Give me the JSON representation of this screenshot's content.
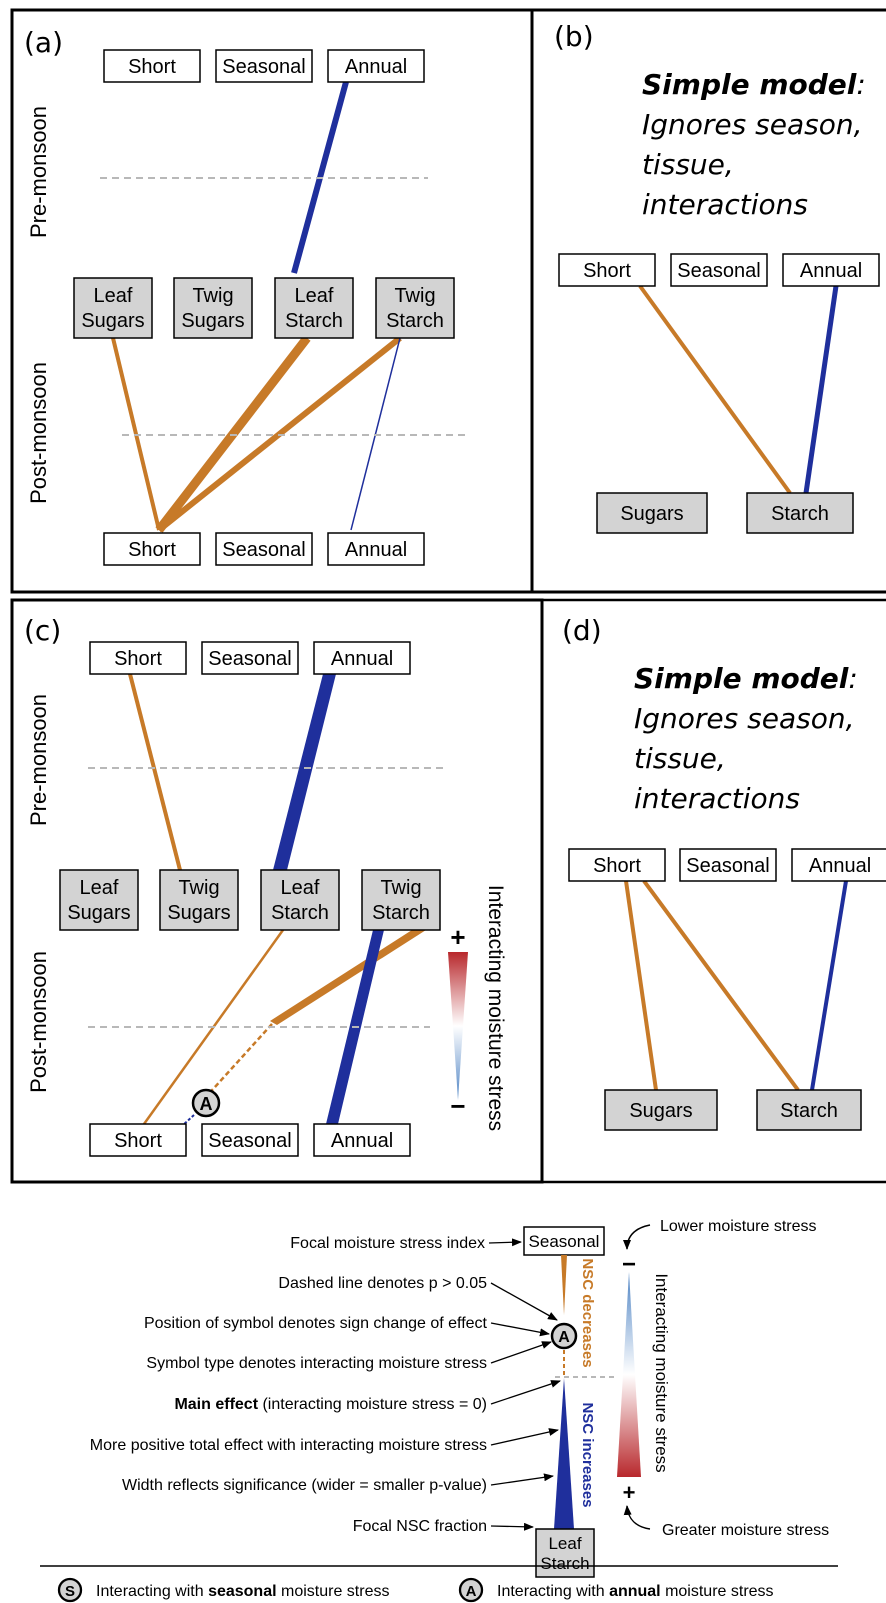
{
  "colors": {
    "orange": "#c77a28",
    "blue": "#1f2f9c",
    "box_gray": "#d3d3d3",
    "dash_gray": "#b8b8b8",
    "grad_red": "#b8282c",
    "grad_blue": "#4f84c4"
  },
  "panels": {
    "a": {
      "label": "(a)",
      "premonsoon": "Pre-monsoon",
      "postmonsoon": "Post-monsoon",
      "top": [
        "Short",
        "Seasonal",
        "Annual"
      ],
      "bottom": [
        "Short",
        "Seasonal",
        "Annual"
      ],
      "mid": [
        [
          "Leaf",
          "Sugars"
        ],
        [
          "Twig",
          "Sugars"
        ],
        [
          "Leaf",
          "Starch"
        ],
        [
          "Twig",
          "Starch"
        ]
      ]
    },
    "b": {
      "label": "(b)",
      "title_bold": "Simple model",
      "title_colon": ":",
      "lines": [
        "Ignores season,",
        "tissue,",
        "interactions"
      ],
      "top": [
        "Short",
        "Seasonal",
        "Annual"
      ],
      "bottom": [
        "Sugars",
        "Starch"
      ]
    },
    "c": {
      "label": "(c)",
      "premonsoon": "Pre-monsoon",
      "postmonsoon": "Post-monsoon",
      "top": [
        "Short",
        "Seasonal",
        "Annual"
      ],
      "bottom": [
        "Short",
        "Seasonal",
        "Annual"
      ],
      "mid": [
        [
          "Leaf",
          "Sugars"
        ],
        [
          "Twig",
          "Sugars"
        ],
        [
          "Leaf",
          "Starch"
        ],
        [
          "Twig",
          "Starch"
        ]
      ],
      "symbol": "A",
      "stress_label": "Interacting moisture stress",
      "plus": "+",
      "minus": "−"
    },
    "d": {
      "label": "(d)",
      "title_bold": "Simple model",
      "title_colon": ":",
      "lines": [
        "Ignores season,",
        "tissue,",
        "interactions"
      ],
      "top": [
        "Short",
        "Seasonal",
        "Annual"
      ],
      "bottom": [
        "Sugars",
        "Starch"
      ]
    }
  },
  "legend": {
    "seasonal_box": "Seasonal",
    "leaf_starch": [
      "Leaf",
      "Starch"
    ],
    "nsc_decreases": "NSC decreases",
    "nsc_increases": "NSC increases",
    "symbol": "A",
    "stress_label": "Interacting moisture stress",
    "lower_stress": "Lower moisture stress",
    "greater_stress": "Greater moisture stress",
    "minus": "−",
    "plus": "+",
    "ann_focal_index": "Focal moisture stress index",
    "ann_dashed": "Dashed line denotes p > 0.05",
    "ann_position": "Position of symbol denotes sign change of effect",
    "ann_symbol_type": "Symbol type denotes interacting moisture stress",
    "ann_main_bold": "Main effect",
    "ann_main_rest": " (interacting moisture stress = 0)",
    "ann_more_positive": "More positive total effect with interacting moisture stress",
    "ann_width": "Width reflects significance (wider = smaller p-value)",
    "ann_focal_nsc": "Focal NSC fraction"
  },
  "footer": {
    "s_symbol": "S",
    "s_prefix": "Interacting with ",
    "s_bold": "seasonal",
    "s_suffix": " moisture stress",
    "a_symbol": "A",
    "a_prefix": "Interacting with ",
    "a_bold": "annual",
    "a_suffix": " moisture stress"
  }
}
